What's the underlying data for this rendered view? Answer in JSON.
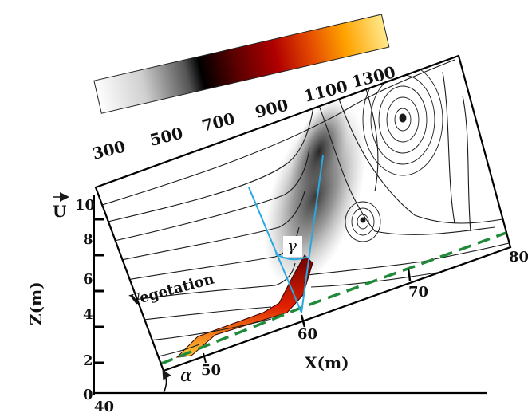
{
  "colorbar": {
    "ticks": [
      "300",
      "500",
      "700",
      "900",
      "1100",
      "1300"
    ],
    "colors": [
      "#ffffff",
      "#cfcfcf",
      "#6e6e6e",
      "#000000",
      "#5a0000",
      "#b00000",
      "#e44a00",
      "#ffa200",
      "#ffe98a"
    ]
  },
  "axes": {
    "z_label": "Z(m)",
    "x_label": "X(m)",
    "z_ticks": [
      "0",
      "2",
      "4",
      "6",
      "8",
      "10"
    ],
    "x_ticks": [
      "40",
      "50",
      "60",
      "70",
      "80"
    ]
  },
  "annotations": {
    "vegetation": "Vegetation",
    "wind": "U",
    "slope_angle": "α",
    "flame_angle": "γ"
  },
  "colors": {
    "streamline": "#1a1a1a",
    "vegetation_line": "#1f8a3a",
    "flame_axis": "#2aa8e0",
    "frame": "#000000"
  }
}
